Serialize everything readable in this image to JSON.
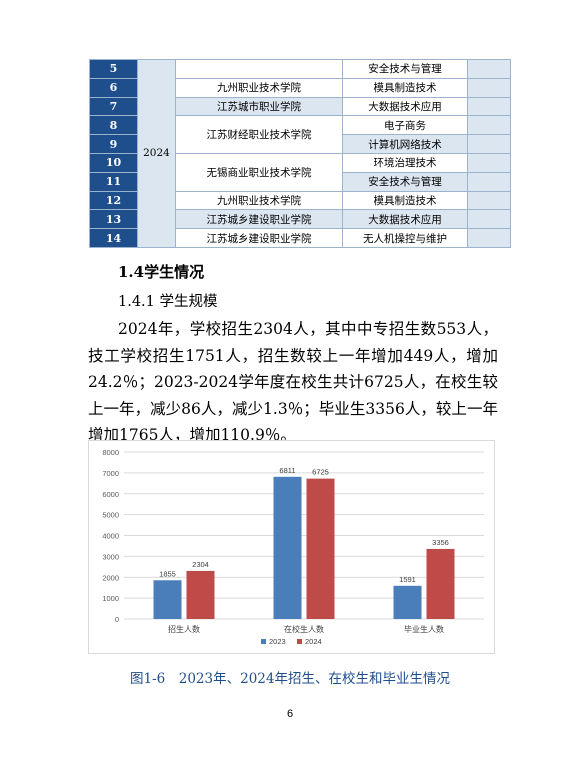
{
  "table": {
    "rows": [
      {
        "num": "5",
        "year": "",
        "school": "",
        "major": "安全技术与管理",
        "tail": ""
      },
      {
        "num": "6",
        "year": "",
        "school": "九州职业技术学院",
        "major": "模具制造技术",
        "tail": ""
      },
      {
        "num": "7",
        "year": "",
        "school": "江苏城市职业学院",
        "major": "大数据技术应用",
        "tail": ""
      },
      {
        "num": "8",
        "year": "",
        "school": "",
        "major": "电子商务",
        "tail": ""
      },
      {
        "num": "9",
        "year": "",
        "school": "江苏财经职业技术学院",
        "major": "计算机网络技术",
        "tail": ""
      },
      {
        "num": "10",
        "year": "2024",
        "school": "",
        "major": "环境治理技术",
        "tail": ""
      },
      {
        "num": "11",
        "year": "",
        "school": "无锡商业职业技术学院",
        "major": "安全技术与管理",
        "tail": ""
      },
      {
        "num": "12",
        "year": "",
        "school": "九州职业技术学院",
        "major": "模具制造技术",
        "tail": ""
      },
      {
        "num": "13",
        "year": "",
        "school": "江苏城乡建设职业学院",
        "major": "大数据技术应用",
        "tail": ""
      },
      {
        "num": "14",
        "year": "",
        "school": "江苏城乡建设职业学院",
        "major": "无人机操控与维护",
        "tail": ""
      }
    ]
  },
  "section_title": "1.4学生情况",
  "subsection_title": "1.4.1  学生规模",
  "paragraph": "2024年，学校招生2304人，其中中专招生数553人，技工学校招生1751人，招生数较上一年增加449人，增加24.2％；2023-2024学年度在校生共计6725人，在校生较上一年，减少86人，减少1.3％；毕业生3356人，较上一年增加1765人，增加110.9％。",
  "chart_data": {
    "type": "bar",
    "categories": [
      "招生人数",
      "在校生人数",
      "毕业生人数"
    ],
    "series": [
      {
        "name": "2023",
        "values": [
          1855,
          6811,
          1591
        ],
        "color": "#4a7ebb"
      },
      {
        "name": "2024",
        "values": [
          2304,
          6725,
          3356
        ],
        "color": "#be4b48"
      }
    ],
    "ylim": [
      0,
      8000
    ],
    "yticks": [
      0,
      1000,
      2000,
      3000,
      4000,
      5000,
      6000,
      7000,
      8000
    ],
    "grid": true,
    "legend": "bottom",
    "title": "",
    "xlabel": "",
    "ylabel": ""
  },
  "caption": "图1-6　2023年、2024年招生、在校生和毕业生情况",
  "page_number": "6"
}
